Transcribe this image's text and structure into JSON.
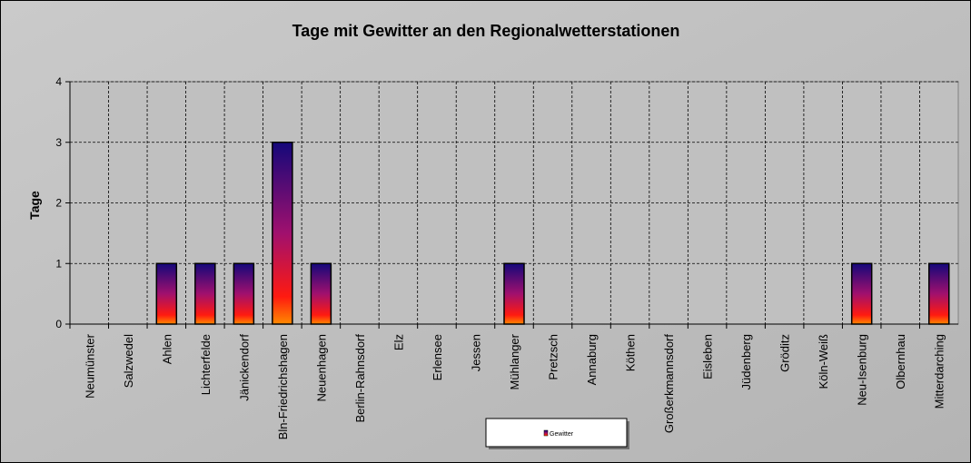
{
  "chart_data": {
    "type": "bar",
    "title": "Tage mit Gewitter  an den Regionalwetterstationen",
    "y_label": "Tage",
    "categories": [
      "Neumünster",
      "Salzwedel",
      "Ahlen",
      "Lichterfelde",
      "Jänickendorf",
      "Bln-Friedrichshagen",
      "Neuenhagen",
      "Berlin-Rahnsdorf",
      "Elz",
      "Erlensee",
      "Jessen",
      "Mühlanger",
      "Pretzsch",
      "Annaburg",
      "Köthen",
      "Großerkmannsdorf",
      "Eisleben",
      "Jüdenberg",
      "Gröditz",
      "Köln-Weiß",
      "Neu-Isenburg",
      "Olbernhau",
      "Mitterdarching"
    ],
    "series": [
      {
        "name": "Gewitter",
        "values": [
          0,
          0,
          1,
          1,
          1,
          3,
          1,
          0,
          0,
          0,
          0,
          1,
          0,
          0,
          0,
          0,
          0,
          0,
          0,
          0,
          1,
          0,
          1
        ]
      }
    ],
    "ylim": [
      0,
      4
    ],
    "yticks": [
      0,
      1,
      2,
      3,
      4
    ],
    "grid": true
  }
}
